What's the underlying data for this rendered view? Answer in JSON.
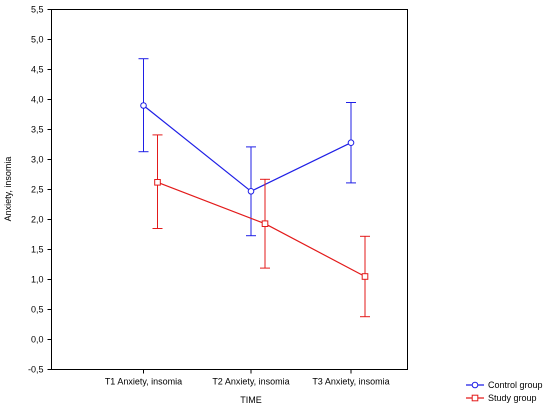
{
  "chart_data": {
    "type": "line",
    "title": "",
    "xlabel": "TIME",
    "ylabel": "Anxiety, insomia",
    "categories": [
      "T1 Anxiety, insomia",
      "T2 Anxiety, insomia",
      "T3 Anxiety, insomia"
    ],
    "ylim": [
      -0.5,
      5.5
    ],
    "yticks": [
      "-0,5",
      "0,0",
      "0,5",
      "1,0",
      "1,5",
      "2,0",
      "2,5",
      "3,0",
      "3,5",
      "4,0",
      "4,5",
      "5,0",
      "5,5"
    ],
    "legend_position": "bottom-right",
    "error_bars": true,
    "series": [
      {
        "name": "Control group",
        "color": "#1f1fe6",
        "marker": "circle",
        "values": [
          3.9,
          2.47,
          3.28
        ],
        "err_low": [
          3.13,
          1.73,
          2.61
        ],
        "err_high": [
          4.68,
          3.21,
          3.95
        ]
      },
      {
        "name": "Study group",
        "color": "#e31a1a",
        "marker": "square",
        "values": [
          2.62,
          1.93,
          1.05
        ],
        "err_low": [
          1.85,
          1.19,
          0.38
        ],
        "err_high": [
          3.41,
          2.67,
          1.72
        ]
      }
    ]
  }
}
